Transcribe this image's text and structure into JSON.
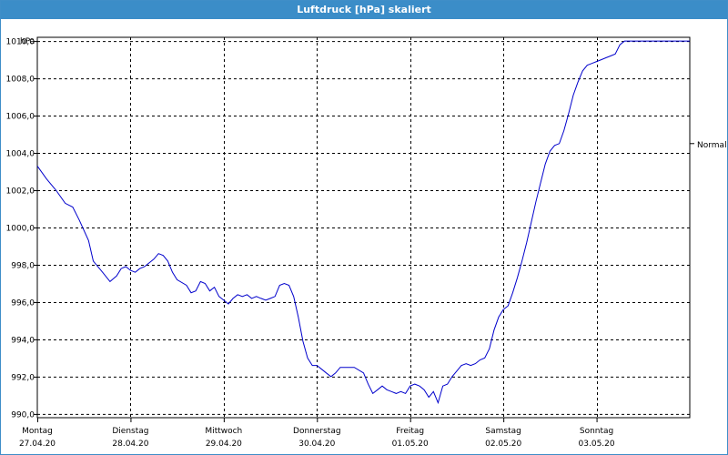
{
  "window": {
    "title": "Luftdruck [hPa] skaliert"
  },
  "colors": {
    "titlebar": "#3b8dc8",
    "line": "#0000cc",
    "grid": "#000000"
  },
  "chart_data": {
    "type": "line",
    "title": "Luftdruck [hPa] skaliert",
    "ylabel": "hPa",
    "ylim": [
      989.8,
      1010.2
    ],
    "yticks": [
      990,
      992,
      994,
      996,
      998,
      1000,
      1002,
      1004,
      1006,
      1008,
      1010
    ],
    "yticklabels": [
      "990,0",
      "992,0",
      "994,0",
      "996,0",
      "998,0",
      "1000,0",
      "1002,0",
      "1004,0",
      "1006,0",
      "1008,0",
      "1010,0"
    ],
    "xlim": [
      0,
      7
    ],
    "xticks": [
      0,
      1,
      2,
      3,
      4,
      5,
      6
    ],
    "xticklabels": [
      [
        "Montag",
        "27.04.20"
      ],
      [
        "Dienstag",
        "28.04.20"
      ],
      [
        "Mittwoch",
        "29.04.20"
      ],
      [
        "Donnerstag",
        "30.04.20"
      ],
      [
        "Freitag",
        "01.05.20"
      ],
      [
        "Samstag",
        "02.05.20"
      ],
      [
        "Sonntag",
        "03.05.20"
      ]
    ],
    "reference_line": {
      "label": "Normal",
      "value": 1004.5
    },
    "grid": true,
    "series": [
      {
        "x": [
          0.0,
          0.1,
          0.2,
          0.3,
          0.38,
          0.45,
          0.55,
          0.6,
          0.7,
          0.78,
          0.85,
          0.9,
          0.95,
          1.0,
          1.05,
          1.1,
          1.15,
          1.25,
          1.3,
          1.35,
          1.4,
          1.45,
          1.5,
          1.6,
          1.65,
          1.7,
          1.75,
          1.8,
          1.85,
          1.9,
          1.95,
          2.0,
          2.05,
          2.1,
          2.15,
          2.2,
          2.25,
          2.3,
          2.35,
          2.4,
          2.45,
          2.5,
          2.55,
          2.6,
          2.65,
          2.7,
          2.75,
          2.8,
          2.85,
          2.9,
          2.95,
          3.0,
          3.05,
          3.1,
          3.15,
          3.2,
          3.25,
          3.3,
          3.4,
          3.5,
          3.55,
          3.6,
          3.65,
          3.7,
          3.75,
          3.8,
          3.85,
          3.9,
          3.95,
          4.0,
          4.05,
          4.1,
          4.15,
          4.2,
          4.25,
          4.3,
          4.35,
          4.4,
          4.45,
          4.5,
          4.55,
          4.6,
          4.65,
          4.7,
          4.75,
          4.8,
          4.85,
          4.9,
          4.95,
          5.0,
          5.05,
          5.1,
          5.15,
          5.2,
          5.25,
          5.3,
          5.35,
          5.4,
          5.45,
          5.5,
          5.55,
          5.6,
          5.65,
          5.7,
          5.75,
          5.8,
          5.85,
          5.9,
          5.95,
          6.0,
          6.05,
          6.1,
          6.15,
          6.2,
          6.25,
          6.3,
          6.35,
          6.4,
          6.45,
          6.5,
          6.55,
          6.6,
          6.65,
          6.7,
          6.75,
          6.8,
          6.85,
          6.9,
          6.95,
          7.0
        ],
        "values": [
          1003.3,
          1002.6,
          1002.0,
          1001.3,
          1001.1,
          1000.4,
          999.3,
          998.2,
          997.6,
          997.1,
          997.4,
          997.8,
          997.9,
          997.7,
          997.6,
          997.8,
          997.9,
          998.3,
          998.6,
          998.5,
          998.2,
          997.6,
          997.2,
          996.9,
          996.5,
          996.6,
          997.1,
          997.0,
          996.6,
          996.8,
          996.3,
          996.1,
          995.9,
          996.2,
          996.4,
          996.3,
          996.4,
          996.2,
          996.3,
          996.2,
          996.1,
          996.2,
          996.3,
          996.9,
          997.0,
          996.9,
          996.3,
          995.2,
          993.9,
          993.0,
          992.6,
          992.6,
          992.4,
          992.2,
          992.0,
          992.2,
          992.5,
          992.5,
          992.5,
          992.2,
          991.6,
          991.1,
          991.3,
          991.5,
          991.3,
          991.2,
          991.1,
          991.2,
          991.1,
          991.5,
          991.6,
          991.5,
          991.3,
          990.9,
          991.2,
          990.6,
          991.5,
          991.6,
          992.0,
          992.3,
          992.6,
          992.7,
          992.6,
          992.7,
          992.9,
          993.0,
          993.5,
          994.5,
          995.2,
          995.6,
          995.8,
          996.5,
          997.3,
          998.2,
          999.2,
          1000.3,
          1001.4,
          1002.4,
          1003.4,
          1004.1,
          1004.4,
          1004.5,
          1005.2,
          1006.1,
          1007.1,
          1007.8,
          1008.4,
          1008.7,
          1008.8,
          1008.9,
          1009.0,
          1009.1,
          1009.2,
          1009.3,
          1009.8,
          1010.0,
          1010.0,
          1010.0,
          1010.0,
          1010.0,
          1010.0,
          1010.0,
          1010.0,
          1010.0,
          1010.0,
          1010.0,
          1010.0,
          1010.0,
          1010.0,
          1010.0
        ]
      }
    ]
  }
}
